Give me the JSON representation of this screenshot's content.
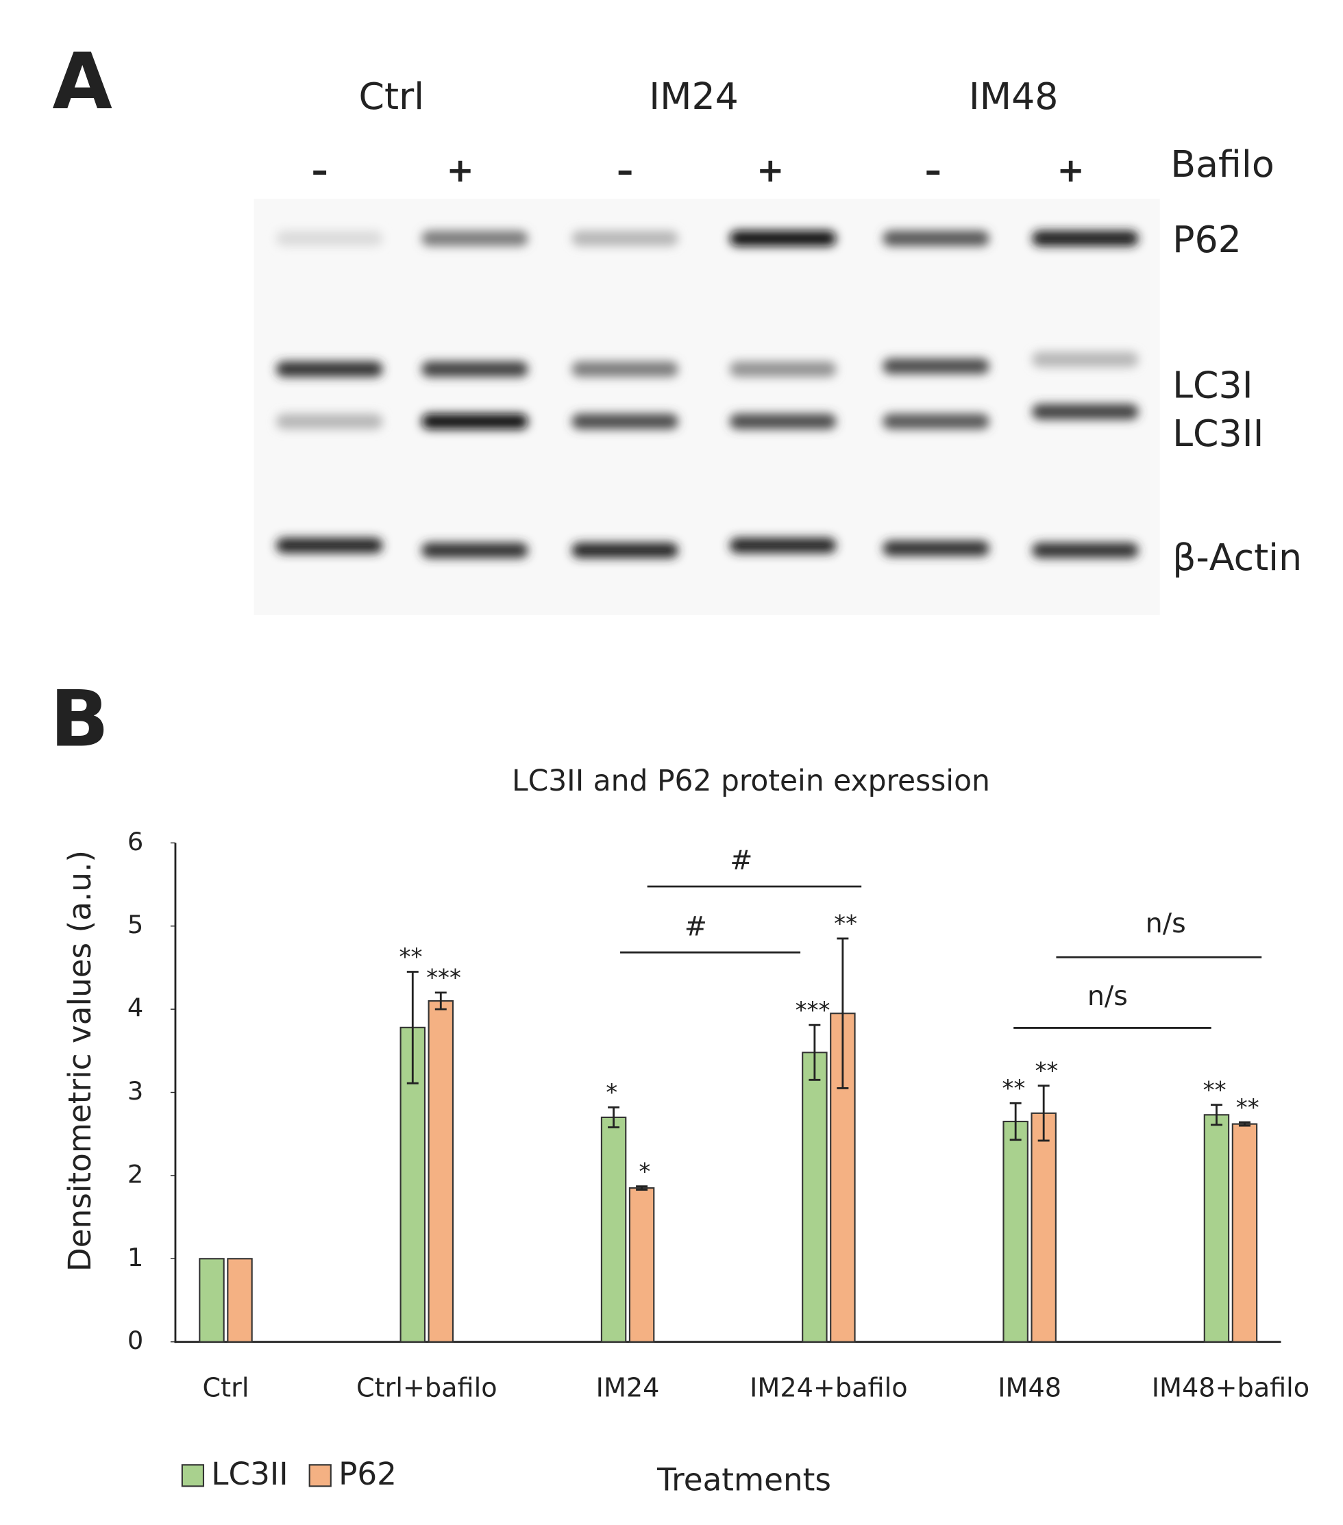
{
  "blot": {
    "panel": "A",
    "groups": [
      "Ctrl",
      "IM24",
      "IM48"
    ],
    "treatment": "Bafilo",
    "signs": [
      "–",
      "+",
      "–",
      "+",
      "–",
      "+"
    ],
    "proteins": [
      "P62",
      "LC3I",
      "LC3II",
      "β-Actin"
    ]
  },
  "panel_b": "B",
  "chart_data": {
    "type": "bar",
    "title": "LC3II and P62 protein expression",
    "x_label": "Treatments",
    "y_label": "Densitometric values (a.u.)",
    "categories": [
      "Ctrl",
      "Ctrl+bafilo",
      "IM24",
      "IM24+bafilo",
      "IM48",
      "IM48+bafilo"
    ],
    "series": [
      {
        "name": "LC3II",
        "color": "#a9d18e",
        "values": [
          1,
          3.78,
          2.7,
          3.48,
          2.65,
          2.73
        ],
        "errors": [
          null,
          0.67,
          0.12,
          0.33,
          0.22,
          0.12
        ],
        "significance": [
          null,
          "**",
          "*",
          "***",
          "**",
          "**"
        ]
      },
      {
        "name": "P62",
        "color": "#f4b183",
        "values": [
          1,
          4.1,
          1.85,
          3.95,
          2.75,
          2.62
        ],
        "errors": [
          null,
          0.1,
          0.02,
          0.9,
          0.33,
          0.02
        ],
        "significance": [
          null,
          "***",
          "*",
          "**",
          "**",
          "**"
        ]
      }
    ],
    "ylim": [
      0,
      6
    ],
    "yticks": [
      0,
      1,
      2,
      3,
      4,
      5,
      6
    ],
    "annotations": [
      "#",
      "#",
      "n/s",
      "n/s"
    ],
    "legend": "bottom-left"
  }
}
